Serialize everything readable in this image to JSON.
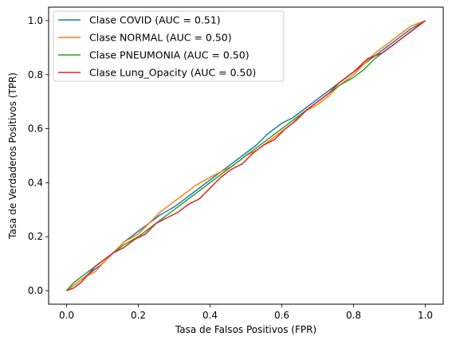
{
  "chart_data": {
    "type": "line",
    "xlabel": "Tasa de Falsos Positivos (FPR)",
    "ylabel": "Tasa de Verdaderos Positivos (TPR)",
    "xlim": [
      -0.05,
      1.05
    ],
    "ylim": [
      -0.05,
      1.05
    ],
    "xticks": [
      0.0,
      0.2,
      0.4,
      0.6,
      0.8,
      1.0
    ],
    "yticks": [
      0.0,
      0.2,
      0.4,
      0.6,
      0.8,
      1.0
    ],
    "xtick_labels": [
      "0.0",
      "0.2",
      "0.4",
      "0.6",
      "0.8",
      "1.0"
    ],
    "ytick_labels": [
      "0.0",
      "0.2",
      "0.4",
      "0.6",
      "0.8",
      "1.0"
    ],
    "grid": false,
    "legend_position": "upper-left",
    "series": [
      {
        "name": "Clase COVID (AUC = 0.51)",
        "color": "#1f77b4",
        "x": [
          0,
          0.02,
          0.05,
          0.08,
          0.1,
          0.13,
          0.16,
          0.2,
          0.23,
          0.26,
          0.3,
          0.33,
          0.36,
          0.4,
          0.43,
          0.46,
          0.5,
          0.53,
          0.56,
          0.6,
          0.63,
          0.66,
          0.7,
          0.73,
          0.76,
          0.8,
          0.83,
          0.86,
          0.9,
          0.93,
          0.96,
          1.0
        ],
        "y": [
          0,
          0.02,
          0.05,
          0.08,
          0.1,
          0.14,
          0.18,
          0.22,
          0.25,
          0.28,
          0.31,
          0.34,
          0.37,
          0.41,
          0.44,
          0.47,
          0.51,
          0.54,
          0.58,
          0.62,
          0.64,
          0.67,
          0.71,
          0.74,
          0.77,
          0.81,
          0.84,
          0.87,
          0.91,
          0.94,
          0.97,
          1.0
        ]
      },
      {
        "name": "Clase NORMAL (AUC = 0.50)",
        "color": "#ff7f0e",
        "x": [
          0,
          0.02,
          0.05,
          0.08,
          0.1,
          0.13,
          0.16,
          0.2,
          0.23,
          0.26,
          0.3,
          0.33,
          0.36,
          0.4,
          0.43,
          0.46,
          0.5,
          0.53,
          0.56,
          0.6,
          0.63,
          0.66,
          0.7,
          0.73,
          0.76,
          0.8,
          0.83,
          0.86,
          0.9,
          0.93,
          0.96,
          1.0
        ],
        "y": [
          0,
          0.02,
          0.05,
          0.07,
          0.1,
          0.14,
          0.18,
          0.21,
          0.25,
          0.29,
          0.33,
          0.36,
          0.39,
          0.42,
          0.44,
          0.46,
          0.5,
          0.52,
          0.55,
          0.59,
          0.62,
          0.66,
          0.69,
          0.72,
          0.76,
          0.8,
          0.84,
          0.88,
          0.92,
          0.95,
          0.98,
          1.0
        ]
      },
      {
        "name": "Clase PNEUMONIA (AUC = 0.50)",
        "color": "#2ca02c",
        "x": [
          0,
          0.02,
          0.05,
          0.08,
          0.1,
          0.13,
          0.16,
          0.2,
          0.23,
          0.26,
          0.3,
          0.33,
          0.36,
          0.4,
          0.43,
          0.46,
          0.5,
          0.53,
          0.56,
          0.6,
          0.63,
          0.66,
          0.7,
          0.73,
          0.76,
          0.8,
          0.83,
          0.86,
          0.9,
          0.93,
          0.96,
          1.0
        ],
        "y": [
          0,
          0.03,
          0.06,
          0.09,
          0.11,
          0.14,
          0.17,
          0.2,
          0.23,
          0.26,
          0.3,
          0.33,
          0.36,
          0.4,
          0.43,
          0.46,
          0.5,
          0.53,
          0.56,
          0.6,
          0.63,
          0.66,
          0.7,
          0.73,
          0.76,
          0.79,
          0.82,
          0.86,
          0.9,
          0.93,
          0.96,
          1.0
        ]
      },
      {
        "name": "Clase Lung_Opacity (AUC = 0.50)",
        "color": "#d62728",
        "x": [
          0,
          0.02,
          0.04,
          0.06,
          0.08,
          0.1,
          0.13,
          0.16,
          0.19,
          0.22,
          0.25,
          0.28,
          0.31,
          0.34,
          0.37,
          0.4,
          0.43,
          0.46,
          0.49,
          0.52,
          0.55,
          0.58,
          0.61,
          0.64,
          0.67,
          0.7,
          0.73,
          0.76,
          0.8,
          0.84,
          0.88,
          0.92,
          0.96,
          1.0
        ],
        "y": [
          0,
          0.01,
          0.03,
          0.06,
          0.09,
          0.11,
          0.14,
          0.16,
          0.19,
          0.21,
          0.25,
          0.27,
          0.29,
          0.32,
          0.34,
          0.38,
          0.42,
          0.45,
          0.47,
          0.51,
          0.54,
          0.56,
          0.6,
          0.63,
          0.67,
          0.7,
          0.73,
          0.77,
          0.81,
          0.86,
          0.88,
          0.92,
          0.96,
          1.0
        ]
      }
    ]
  }
}
